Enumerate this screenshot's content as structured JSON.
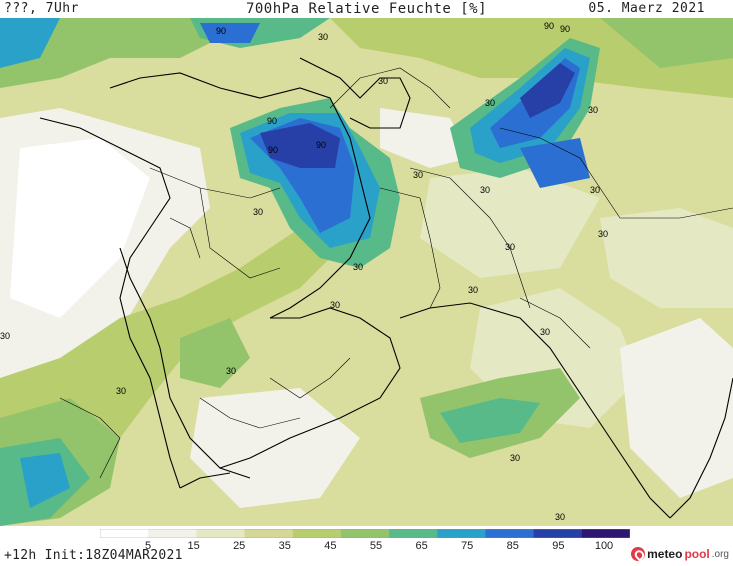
{
  "header": {
    "left": "???, 7Uhr",
    "title": "700hPa Relative Feuchte [%]",
    "date": "05. Maerz 2021"
  },
  "footer": {
    "run": "+12h Init:18Z04MAR2021",
    "brand_meteo": "meteo",
    "brand_pool": "pool",
    "brand_org": ".org"
  },
  "legend": {
    "labels": [
      "5",
      "15",
      "25",
      "35",
      "45",
      "55",
      "65",
      "75",
      "85",
      "95",
      "100"
    ],
    "colors": [
      "#ffffff",
      "#f2f2ea",
      "#e4e9c3",
      "#d3d896",
      "#b8cd6e",
      "#93c46b",
      "#58b989",
      "#2aa1c9",
      "#2a6fd1",
      "#2740a8",
      "#2c1873"
    ]
  },
  "contour_labels": [
    {
      "text": "90"
    },
    {
      "text": "30"
    },
    {
      "text": "90"
    },
    {
      "text": "90"
    },
    {
      "text": "90"
    },
    {
      "text": "30"
    },
    {
      "text": "30"
    },
    {
      "text": "30"
    },
    {
      "text": "30"
    },
    {
      "text": "30"
    },
    {
      "text": "30"
    },
    {
      "text": "30"
    },
    {
      "text": "30"
    },
    {
      "text": "30"
    },
    {
      "text": "90"
    },
    {
      "text": "90"
    },
    {
      "text": "30"
    },
    {
      "text": "30"
    },
    {
      "text": "30"
    },
    {
      "text": "30"
    },
    {
      "text": "30"
    },
    {
      "text": "30"
    },
    {
      "text": "30"
    },
    {
      "text": "30"
    },
    {
      "text": "30"
    }
  ]
}
